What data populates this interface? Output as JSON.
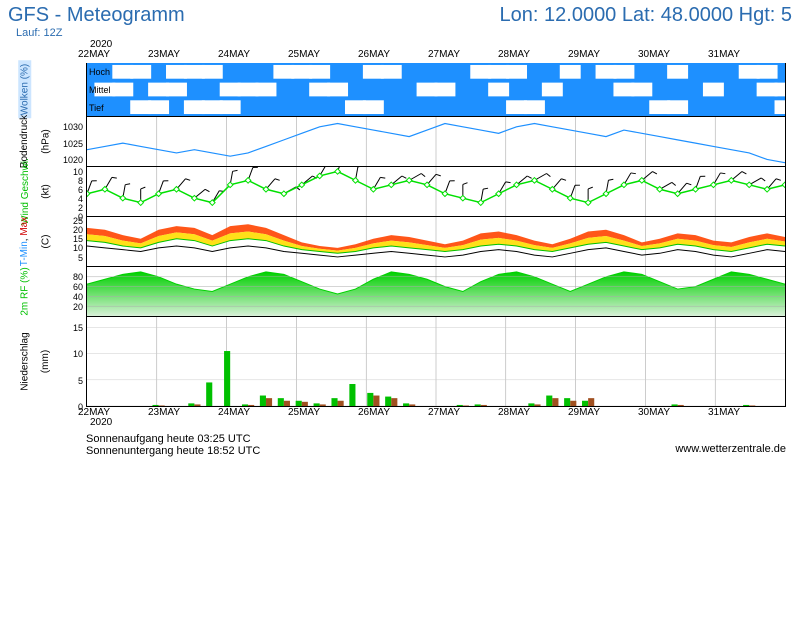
{
  "header": {
    "title_left": "GFS - Meteogramm",
    "title_right": "Lon: 12.0000 Lat: 48.0000 Hgt: 5",
    "run_label": "Lauf: 12Z"
  },
  "time_axis": {
    "year": "2020",
    "labels": [
      "22MAY",
      "23MAY",
      "24MAY",
      "25MAY",
      "26MAY",
      "27MAY",
      "28MAY",
      "29MAY",
      "30MAY",
      "31MAY"
    ],
    "n_days": 10
  },
  "panels": {
    "clouds": {
      "height": 54,
      "ylabel": "Wolken (%)",
      "ylabel_color": "#2b6cb0",
      "bg_color": "#1e90ff",
      "cloud_color": "#ffffff",
      "levels": [
        "Hoch",
        "Mittel",
        "Tief"
      ],
      "hoch": [
        0,
        0,
        1,
        1,
        0,
        1,
        1,
        1,
        0,
        0,
        0,
        1,
        1,
        1,
        0,
        0,
        1,
        1,
        0,
        0,
        0,
        0,
        1,
        1,
        1,
        0,
        0,
        1,
        0,
        1,
        1,
        0,
        0,
        1,
        0,
        0,
        0,
        1,
        1,
        0
      ],
      "mittel": [
        0,
        1,
        1,
        0,
        1,
        1,
        0,
        0,
        1,
        1,
        1,
        0,
        0,
        1,
        1,
        0,
        0,
        0,
        0,
        1,
        1,
        0,
        0,
        1,
        0,
        0,
        1,
        0,
        0,
        0,
        1,
        1,
        0,
        0,
        0,
        1,
        0,
        0,
        1,
        1
      ],
      "tief": [
        0,
        0,
        0,
        1,
        1,
        0,
        1,
        1,
        1,
        0,
        0,
        0,
        0,
        0,
        0,
        1,
        1,
        0,
        0,
        0,
        0,
        0,
        0,
        0,
        1,
        1,
        0,
        0,
        0,
        0,
        0,
        0,
        1,
        1,
        0,
        0,
        0,
        0,
        0,
        1
      ]
    },
    "pressure": {
      "height": 50,
      "ylabel": "Bodendruck",
      "unit": "(hPa)",
      "color": "#1e90ff",
      "ymin": 1018,
      "ymax": 1033,
      "yticks": [
        1020,
        1025,
        1030
      ],
      "data": [
        1023,
        1024,
        1025,
        1024,
        1023,
        1022,
        1023,
        1022,
        1021,
        1022,
        1024,
        1026,
        1028,
        1030,
        1031,
        1030,
        1029,
        1028,
        1027,
        1029,
        1031,
        1030,
        1029,
        1028,
        1030,
        1031,
        1030,
        1029,
        1028,
        1027,
        1029,
        1028,
        1027,
        1026,
        1025,
        1024,
        1023,
        1022,
        1020,
        1019
      ]
    },
    "wind": {
      "height": 50,
      "ylabel": "Wind Geschwi.",
      "ylabel2": "Windfahnen",
      "ylabel_color": "#00c000",
      "unit": "(kt)",
      "color": "#00e000",
      "barb_color": "#000000",
      "ymin": 0,
      "ymax": 11,
      "yticks": [
        0,
        2,
        4,
        6,
        8,
        10
      ],
      "speed": [
        5,
        6,
        4,
        3,
        5,
        6,
        4,
        3,
        7,
        8,
        6,
        5,
        7,
        9,
        10,
        8,
        6,
        7,
        8,
        7,
        5,
        4,
        3,
        5,
        7,
        8,
        6,
        4,
        3,
        5,
        7,
        8,
        6,
        5,
        6,
        7,
        8,
        7,
        6,
        7
      ],
      "dir": [
        200,
        210,
        190,
        180,
        200,
        220,
        230,
        210,
        190,
        200,
        220,
        240,
        230,
        210,
        200,
        190,
        210,
        230,
        240,
        220,
        200,
        180,
        190,
        210,
        230,
        240,
        220,
        200,
        180,
        190,
        210,
        230,
        240,
        220,
        200,
        210,
        230,
        240,
        220,
        210
      ]
    },
    "temp": {
      "height": 50,
      "ylabel": "T-Min, Max",
      "ylabel2": "Taupunkt",
      "ylabel_colors": [
        "#1e90ff",
        "#d00000"
      ],
      "unit": "(C)",
      "ymin": 0,
      "ymax": 27,
      "yticks": [
        5,
        10,
        15,
        20,
        25
      ],
      "tmax_color": "#ff4400",
      "tmin_color": "#ffdd00",
      "tmid_color": "#ffaa00",
      "dew_color": "#000000",
      "tmax": [
        21,
        20,
        17,
        15,
        20,
        22,
        21,
        17,
        22,
        23,
        21,
        17,
        13,
        11,
        10,
        12,
        15,
        17,
        16,
        14,
        12,
        14,
        18,
        19,
        17,
        14,
        12,
        15,
        19,
        20,
        17,
        13,
        15,
        18,
        17,
        14,
        13,
        16,
        18,
        16
      ],
      "tmin": [
        14,
        13,
        11,
        10,
        13,
        15,
        14,
        11,
        14,
        15,
        14,
        11,
        9,
        8,
        7,
        8,
        10,
        11,
        10,
        9,
        8,
        9,
        11,
        12,
        11,
        9,
        8,
        10,
        12,
        13,
        11,
        9,
        10,
        12,
        11,
        9,
        8,
        10,
        12,
        11
      ],
      "dew": [
        11,
        10,
        9,
        8,
        10,
        11,
        10,
        8,
        10,
        11,
        10,
        8,
        7,
        6,
        5,
        6,
        7,
        8,
        7,
        6,
        5,
        6,
        8,
        9,
        8,
        6,
        5,
        7,
        9,
        10,
        8,
        6,
        7,
        9,
        8,
        6,
        5,
        7,
        9,
        8
      ]
    },
    "rh": {
      "height": 50,
      "ylabel": "2m RF (%)",
      "ylabel_color": "#00c000",
      "fill_top": "#00d000",
      "fill_bottom": "#d8f0d8",
      "ymin": 0,
      "ymax": 100,
      "yticks": [
        20,
        40,
        60,
        80
      ],
      "data": [
        65,
        75,
        85,
        90,
        80,
        65,
        55,
        50,
        65,
        80,
        90,
        85,
        70,
        55,
        45,
        55,
        75,
        90,
        85,
        75,
        60,
        50,
        70,
        85,
        90,
        80,
        65,
        50,
        65,
        80,
        90,
        85,
        70,
        55,
        60,
        75,
        90,
        85,
        75,
        65
      ]
    },
    "precip": {
      "height": 90,
      "ylabel": "Niederschlag",
      "unit": "(mm)",
      "ymin": 0,
      "ymax": 17,
      "yticks": [
        0,
        5,
        10,
        15
      ],
      "green_color": "#00c000",
      "brown_color": "#a05020",
      "green": [
        0,
        0,
        0,
        0,
        0.2,
        0,
        0.5,
        4.5,
        10.5,
        0.3,
        2,
        1.5,
        1,
        0.5,
        1.5,
        4.2,
        2.5,
        1.8,
        0.5,
        0,
        0,
        0.2,
        0.3,
        0,
        0,
        0.5,
        2,
        1.5,
        1,
        0,
        0,
        0,
        0,
        0.3,
        0,
        0,
        0,
        0.2,
        0,
        0
      ],
      "brown": [
        0,
        0,
        0,
        0,
        0.1,
        0,
        0.3,
        0,
        0,
        0.2,
        1.5,
        1,
        0.8,
        0.3,
        1,
        0,
        2,
        1.5,
        0.3,
        0,
        0,
        0.1,
        0.2,
        0,
        0,
        0.3,
        1.5,
        1,
        1.5,
        0,
        0,
        0,
        0,
        0.2,
        0,
        0,
        0,
        0.1,
        0,
        0
      ]
    }
  },
  "footer": {
    "sunrise": "Sonnenaufgang heute 03:25 UTC",
    "sunset": "Sonnenuntergang heute 18:52 UTC",
    "credit": "www.wetterzentrale.de"
  }
}
